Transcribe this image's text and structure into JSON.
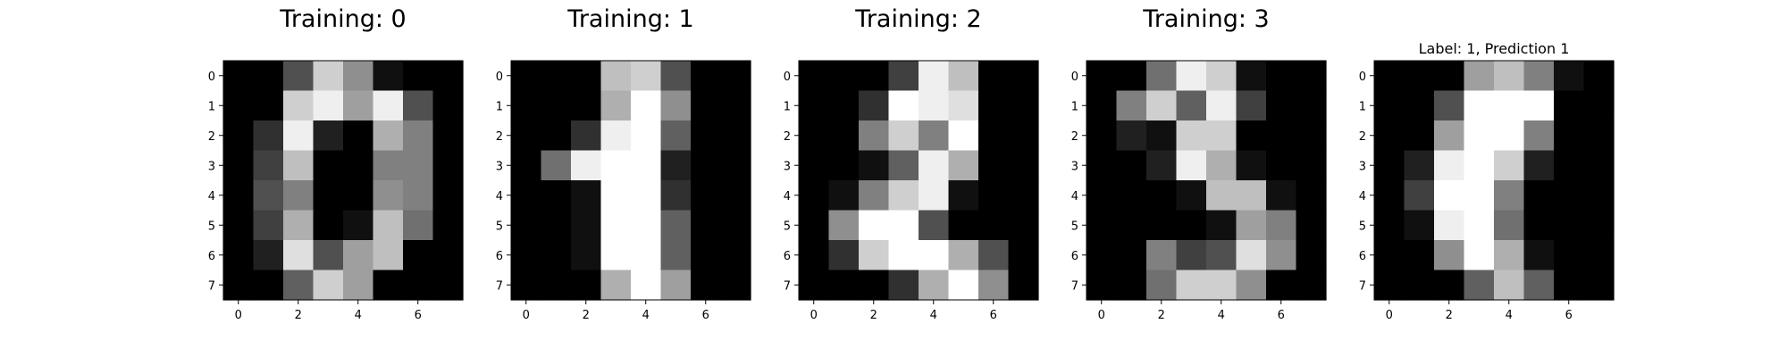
{
  "chart_data": [
    {
      "type": "heatmap",
      "title": "Training: 0",
      "colormap": "gray",
      "value_range": [
        0,
        16
      ],
      "xticks": [
        "0",
        "2",
        "4",
        "6"
      ],
      "yticks": [
        "0",
        "1",
        "2",
        "3",
        "4",
        "5",
        "6",
        "7"
      ],
      "grid": false,
      "values": [
        [
          0,
          0,
          5,
          13,
          9,
          1,
          0,
          0
        ],
        [
          0,
          0,
          13,
          15,
          10,
          15,
          5,
          0
        ],
        [
          0,
          3,
          15,
          2,
          0,
          11,
          8,
          0
        ],
        [
          0,
          4,
          12,
          0,
          0,
          8,
          8,
          0
        ],
        [
          0,
          5,
          8,
          0,
          0,
          9,
          8,
          0
        ],
        [
          0,
          4,
          11,
          0,
          1,
          12,
          7,
          0
        ],
        [
          0,
          2,
          14,
          5,
          10,
          12,
          0,
          0
        ],
        [
          0,
          0,
          6,
          13,
          10,
          0,
          0,
          0
        ]
      ]
    },
    {
      "type": "heatmap",
      "title": "Training: 1",
      "colormap": "gray",
      "value_range": [
        0,
        16
      ],
      "xticks": [
        "0",
        "2",
        "4",
        "6"
      ],
      "yticks": [
        "0",
        "1",
        "2",
        "3",
        "4",
        "5",
        "6",
        "7"
      ],
      "grid": false,
      "values": [
        [
          0,
          0,
          0,
          12,
          13,
          5,
          0,
          0
        ],
        [
          0,
          0,
          0,
          11,
          16,
          9,
          0,
          0
        ],
        [
          0,
          0,
          3,
          15,
          16,
          6,
          0,
          0
        ],
        [
          0,
          7,
          15,
          16,
          16,
          2,
          0,
          0
        ],
        [
          0,
          0,
          1,
          16,
          16,
          3,
          0,
          0
        ],
        [
          0,
          0,
          1,
          16,
          16,
          6,
          0,
          0
        ],
        [
          0,
          0,
          1,
          16,
          16,
          6,
          0,
          0
        ],
        [
          0,
          0,
          0,
          11,
          16,
          10,
          0,
          0
        ]
      ]
    },
    {
      "type": "heatmap",
      "title": "Training: 2",
      "colormap": "gray",
      "value_range": [
        0,
        16
      ],
      "xticks": [
        "0",
        "2",
        "4",
        "6"
      ],
      "yticks": [
        "0",
        "1",
        "2",
        "3",
        "4",
        "5",
        "6",
        "7"
      ],
      "grid": false,
      "values": [
        [
          0,
          0,
          0,
          4,
          15,
          12,
          0,
          0
        ],
        [
          0,
          0,
          3,
          16,
          15,
          14,
          0,
          0
        ],
        [
          0,
          0,
          8,
          13,
          8,
          16,
          0,
          0
        ],
        [
          0,
          0,
          1,
          6,
          15,
          11,
          0,
          0
        ],
        [
          0,
          1,
          8,
          13,
          15,
          1,
          0,
          0
        ],
        [
          0,
          9,
          16,
          16,
          5,
          0,
          0,
          0
        ],
        [
          0,
          3,
          13,
          16,
          16,
          11,
          5,
          0
        ],
        [
          0,
          0,
          0,
          3,
          11,
          16,
          9,
          0
        ]
      ]
    },
    {
      "type": "heatmap",
      "title": "Training: 3",
      "colormap": "gray",
      "value_range": [
        0,
        16
      ],
      "xticks": [
        "0",
        "2",
        "4",
        "6"
      ],
      "yticks": [
        "0",
        "1",
        "2",
        "3",
        "4",
        "5",
        "6",
        "7"
      ],
      "grid": false,
      "values": [
        [
          0,
          0,
          7,
          15,
          13,
          1,
          0,
          0
        ],
        [
          0,
          8,
          13,
          6,
          15,
          4,
          0,
          0
        ],
        [
          0,
          2,
          1,
          13,
          13,
          0,
          0,
          0
        ],
        [
          0,
          0,
          2,
          15,
          11,
          1,
          0,
          0
        ],
        [
          0,
          0,
          0,
          1,
          12,
          12,
          1,
          0
        ],
        [
          0,
          0,
          0,
          0,
          1,
          10,
          8,
          0
        ],
        [
          0,
          0,
          8,
          4,
          5,
          14,
          9,
          0
        ],
        [
          0,
          0,
          7,
          13,
          13,
          9,
          0,
          0
        ]
      ]
    },
    {
      "type": "heatmap",
      "title": "Label: 1, Prediction 1",
      "colormap": "gray",
      "value_range": [
        0,
        16
      ],
      "xticks": [
        "0",
        "2",
        "4",
        "6"
      ],
      "yticks": [
        "0",
        "1",
        "2",
        "3",
        "4",
        "5",
        "6",
        "7"
      ],
      "grid": false,
      "values": [
        [
          0,
          0,
          0,
          10,
          12,
          8,
          1,
          0
        ],
        [
          0,
          0,
          5,
          16,
          16,
          16,
          0,
          0
        ],
        [
          0,
          0,
          10,
          16,
          16,
          8,
          0,
          0
        ],
        [
          0,
          2,
          15,
          16,
          13,
          2,
          0,
          0
        ],
        [
          0,
          4,
          16,
          16,
          8,
          0,
          0,
          0
        ],
        [
          0,
          1,
          15,
          16,
          7,
          0,
          0,
          0
        ],
        [
          0,
          0,
          9,
          16,
          11,
          1,
          0,
          0
        ],
        [
          0,
          0,
          0,
          6,
          12,
          6,
          0,
          0
        ]
      ]
    }
  ]
}
